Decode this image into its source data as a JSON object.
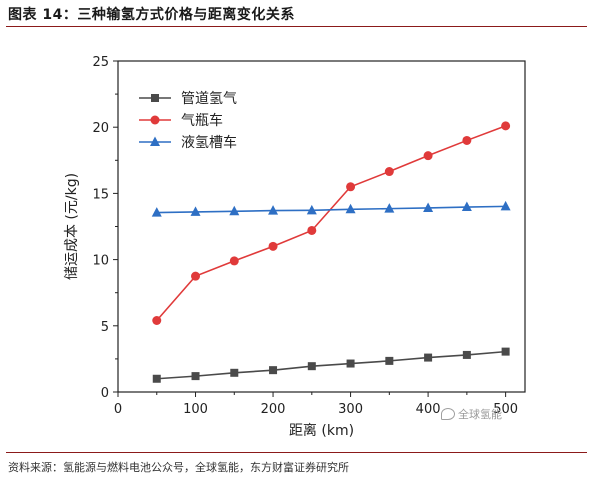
{
  "figure_title": "图表 14：三种输氢方式价格与距离变化关系",
  "source_text": "资料来源：氢能源与燃料电池公众号，全球氢能，东方财富证券研究所",
  "watermark_text": "全球氢能",
  "chart_data": {
    "type": "line",
    "xlabel": "距离 (km)",
    "ylabel": "储运成本 (元/kg)",
    "xlim": [
      0,
      525
    ],
    "ylim": [
      0,
      25
    ],
    "x_ticks": [
      "0",
      "100",
      "200",
      "300",
      "400",
      "500"
    ],
    "y_ticks": [
      "0",
      "5",
      "10",
      "15",
      "20",
      "25"
    ],
    "grid": false,
    "legend_position": "top-left",
    "x": [
      50,
      100,
      150,
      200,
      250,
      300,
      350,
      400,
      450,
      500
    ],
    "series": [
      {
        "name": "管道氢气",
        "color": "#4a4a4a",
        "marker": "square",
        "values": [
          1.0,
          1.2,
          1.45,
          1.65,
          1.95,
          2.15,
          2.35,
          2.6,
          2.8,
          3.05
        ]
      },
      {
        "name": "气瓶车",
        "color": "#e03a3a",
        "marker": "circle",
        "values": [
          5.4,
          8.75,
          9.9,
          11.0,
          12.2,
          15.5,
          16.65,
          17.85,
          19.0,
          20.1
        ]
      },
      {
        "name": "液氢槽车",
        "color": "#2e6fc4",
        "marker": "triangle",
        "values": [
          13.55,
          13.6,
          13.65,
          13.7,
          13.72,
          13.8,
          13.85,
          13.9,
          13.97,
          14.02
        ]
      }
    ]
  }
}
